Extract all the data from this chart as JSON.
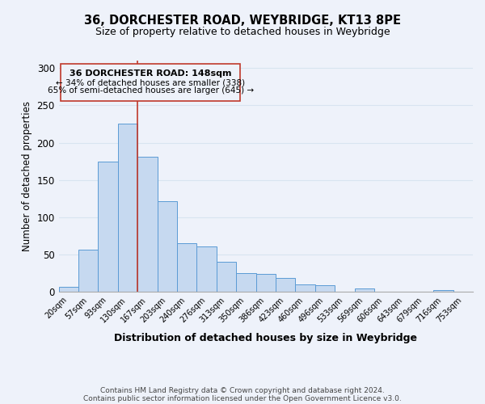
{
  "title": "36, DORCHESTER ROAD, WEYBRIDGE, KT13 8PE",
  "subtitle": "Size of property relative to detached houses in Weybridge",
  "xlabel": "Distribution of detached houses by size in Weybridge",
  "ylabel": "Number of detached properties",
  "bar_labels": [
    "20sqm",
    "57sqm",
    "93sqm",
    "130sqm",
    "167sqm",
    "203sqm",
    "240sqm",
    "276sqm",
    "313sqm",
    "350sqm",
    "386sqm",
    "423sqm",
    "460sqm",
    "496sqm",
    "533sqm",
    "569sqm",
    "606sqm",
    "643sqm",
    "679sqm",
    "716sqm",
    "753sqm"
  ],
  "bar_values": [
    7,
    57,
    175,
    226,
    181,
    121,
    65,
    61,
    40,
    25,
    24,
    19,
    10,
    9,
    0,
    4,
    0,
    0,
    0,
    2,
    0
  ],
  "bar_color": "#c6d9f0",
  "bar_edge_color": "#5b9bd5",
  "vline_x": 3.5,
  "vline_color": "#c0392b",
  "ylim": [
    0,
    310
  ],
  "yticks": [
    0,
    50,
    100,
    150,
    200,
    250,
    300
  ],
  "annotation_title": "36 DORCHESTER ROAD: 148sqm",
  "annotation_line1": "← 34% of detached houses are smaller (338)",
  "annotation_line2": "65% of semi-detached houses are larger (645) →",
  "footer_line1": "Contains HM Land Registry data © Crown copyright and database right 2024.",
  "footer_line2": "Contains public sector information licensed under the Open Government Licence v3.0.",
  "background_color": "#eef2fa",
  "grid_color": "#d8e4f0"
}
